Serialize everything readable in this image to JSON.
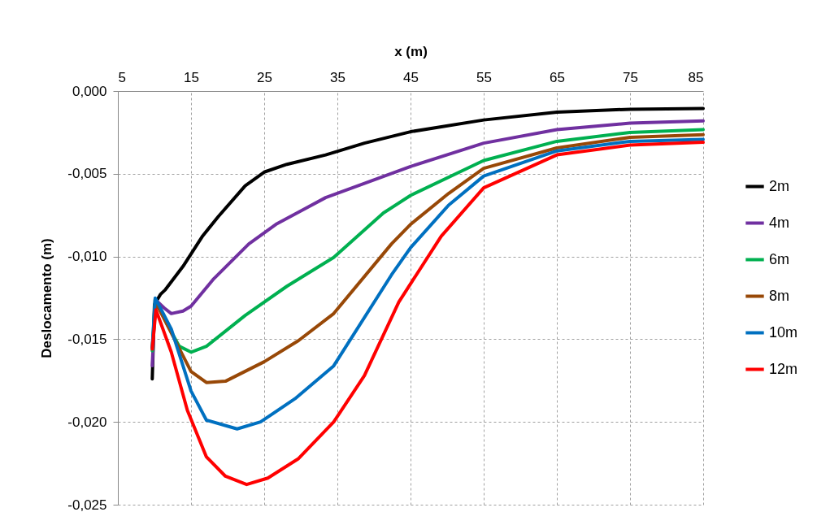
{
  "chart_data": {
    "type": "line",
    "xlabel": "x (m)",
    "ylabel": "Deslocamento (m)",
    "xlim": [
      5,
      85
    ],
    "xticks": [
      5,
      15,
      25,
      35,
      45,
      55,
      65,
      75,
      85
    ],
    "ylim": [
      -0.025,
      0
    ],
    "yticks": [
      {
        "value": 0,
        "label": "0,000"
      },
      {
        "value": -0.005,
        "label": "-0,005"
      },
      {
        "value": -0.01,
        "label": "-0,010"
      },
      {
        "value": -0.015,
        "label": "-0,015"
      },
      {
        "value": -0.02,
        "label": "-0,020"
      },
      {
        "value": -0.025,
        "label": "-0,025"
      }
    ],
    "grid": true,
    "legend": "right",
    "marker": "none",
    "line_style": "solid",
    "series": [
      {
        "name": "2m",
        "color": "#000000",
        "x": [
          9.7,
          10.0,
          10.8,
          11.5,
          13.9,
          16.6,
          18.7,
          22.4,
          25,
          28.1,
          33.4,
          38.7,
          45,
          55,
          65,
          75,
          85
        ],
        "values": [
          -0.0174,
          -0.0129,
          -0.0123,
          -0.012,
          -0.0106,
          -0.00875,
          -0.0076,
          -0.00573,
          -0.0049,
          -0.00443,
          -0.00386,
          -0.00315,
          -0.00246,
          -0.00175,
          -0.00128,
          -0.0011,
          -0.00105
        ]
      },
      {
        "name": "4m",
        "color": "#7030a0",
        "x": [
          9.7,
          10.1,
          11.3,
          12.3,
          13.9,
          15,
          18.1,
          22.9,
          26.6,
          33.4,
          45,
          55,
          65,
          75,
          85
        ],
        "values": [
          -0.0166,
          -0.0126,
          -0.0131,
          -0.01345,
          -0.0133,
          -0.013,
          -0.01135,
          -0.00924,
          -0.00806,
          -0.00644,
          -0.00456,
          -0.00315,
          -0.00233,
          -0.00194,
          -0.0018
        ]
      },
      {
        "name": "6m",
        "color": "#00b050",
        "x": [
          9.7,
          10.1,
          11.8,
          13.4,
          15,
          17.1,
          22.4,
          28.1,
          34.5,
          41.3,
          45,
          55,
          65,
          75,
          85
        ],
        "values": [
          -0.0157,
          -0.0126,
          -0.01415,
          -0.01543,
          -0.01578,
          -0.01543,
          -0.01356,
          -0.0118,
          -0.01006,
          -0.00737,
          -0.00631,
          -0.0042,
          -0.00304,
          -0.0025,
          -0.00233
        ]
      },
      {
        "name": "8m",
        "color": "#984807",
        "x": [
          9.7,
          10.2,
          12.3,
          15,
          17.1,
          19.7,
          25,
          29.7,
          34.5,
          42.4,
          45,
          50.2,
          55,
          65,
          75,
          85
        ],
        "values": [
          -0.0155,
          -0.0128,
          -0.01462,
          -0.01695,
          -0.01762,
          -0.01754,
          -0.01636,
          -0.01508,
          -0.01345,
          -0.00924,
          -0.00806,
          -0.00619,
          -0.00467,
          -0.00344,
          -0.0028,
          -0.00264
        ]
      },
      {
        "name": "10m",
        "color": "#0070c0",
        "x": [
          9.7,
          10.1,
          12.3,
          15,
          17.1,
          21.3,
          24.5,
          29.2,
          34.5,
          42.4,
          45,
          50.2,
          55,
          65,
          75,
          85
        ],
        "values": [
          -0.0155,
          -0.01251,
          -0.01439,
          -0.01813,
          -0.01989,
          -0.02042,
          -0.02,
          -0.0186,
          -0.01661,
          -0.01111,
          -0.00947,
          -0.0069,
          -0.00514,
          -0.00362,
          -0.00304,
          -0.00292
        ]
      },
      {
        "name": "12m",
        "color": "#ff0000",
        "x": [
          9.7,
          10.2,
          12.3,
          14.5,
          17.1,
          19.7,
          22.6,
          25.5,
          29.7,
          34.5,
          38.7,
          43.4,
          49.2,
          55,
          65,
          75,
          85
        ],
        "values": [
          -0.0156,
          -0.01322,
          -0.01578,
          -0.0193,
          -0.02211,
          -0.02328,
          -0.02378,
          -0.02339,
          -0.02221,
          -0.02,
          -0.0172,
          -0.01275,
          -0.00877,
          -0.00585,
          -0.00386,
          -0.00327,
          -0.0031
        ]
      }
    ]
  }
}
